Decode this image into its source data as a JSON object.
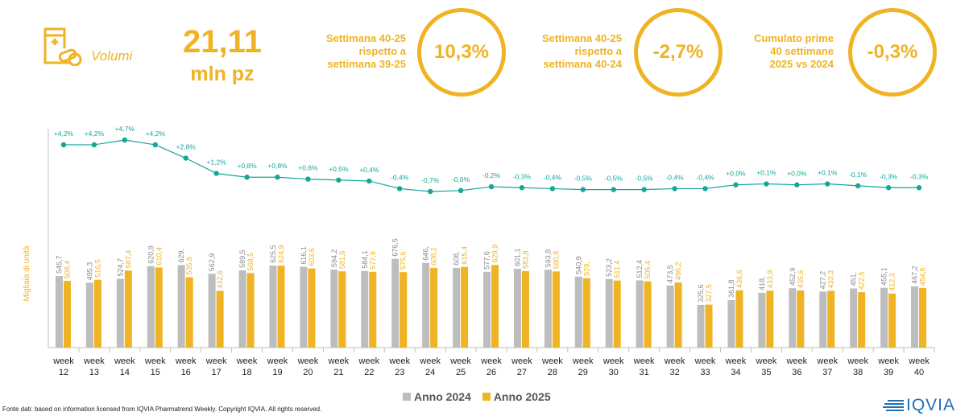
{
  "header": {
    "kpi_label": "Volumi",
    "big_value": "21,11",
    "big_unit": "mln pz",
    "stats": [
      {
        "text_lines": [
          "Settimana 40-25",
          "rispetto a",
          "settimana 39-25"
        ],
        "value": "10,3%"
      },
      {
        "text_lines": [
          "Settimana 40-25",
          "rispetto a",
          "settimana 40-24"
        ],
        "value": "-2,7%"
      },
      {
        "text_lines": [
          "Cumulato prime",
          "40 settimane",
          "2025 vs 2024"
        ],
        "value": "-0,3%"
      }
    ]
  },
  "colors": {
    "accent": "#F0B323",
    "series_2024": "#BDBDBD",
    "series_2025": "#F0B323",
    "line": "#15A69A"
  },
  "footer": {
    "source": "Fonte dati: based on information licensed from IQVIA Pharmatrend Weekly. Copyright IQVIA. All rights reserved.",
    "logo_text": "IQVIA",
    "legend": [
      "Anno 2024",
      "Anno 2025"
    ]
  },
  "chart_data": {
    "type": "bar",
    "ylabel": "Migliaia di unità",
    "categories": [
      "week 12",
      "week 13",
      "week 14",
      "week 15",
      "week 16",
      "week 17",
      "week 18",
      "week 19",
      "week 20",
      "week 21",
      "week 22",
      "week 23",
      "week 24",
      "week 25",
      "week 26",
      "week 27",
      "week 28",
      "week 29",
      "week 30",
      "week 31",
      "week 32",
      "week 33",
      "week 34",
      "week 35",
      "week 36",
      "week 37",
      "week 38",
      "week 39",
      "week 40"
    ],
    "series": [
      {
        "name": "Anno 2024",
        "values": [
          545.7,
          495.3,
          524.7,
          620.9,
          629,
          562.9,
          589.5,
          625.5,
          616.1,
          594.2,
          584.1,
          676.5,
          646,
          608,
          577.6,
          601.1,
          593.8,
          540.9,
          523.2,
          512.4,
          473.5,
          325.6,
          361.8,
          418,
          452.9,
          427.2,
          451,
          455.1,
          467.2
        ],
        "labels": [
          "545,7",
          "495,3",
          "524,7",
          "620,9",
          "629,",
          "562,9",
          "589,5",
          "625,5",
          "616,1",
          "594,2",
          "584,1",
          "676,5",
          "646,",
          "608,",
          "577,6",
          "601,1",
          "593,8",
          "540,9",
          "523,2",
          "512,4",
          "473,5",
          "325,6",
          "361,8",
          "418,",
          "452,9",
          "427,2",
          "451,",
          "455,1",
          "467,2"
        ]
      },
      {
        "name": "Anno 2025",
        "values": [
          508.4,
          516.5,
          587.4,
          610.4,
          535.8,
          432.6,
          568.5,
          624.9,
          603.6,
          581.6,
          577.9,
          575.6,
          608.2,
          615.4,
          629.9,
          583.8,
          580.8,
          529,
          511.4,
          505.4,
          496.2,
          327.5,
          436.6,
          433.9,
          435.6,
          433.3,
          422.5,
          412.3,
          454.6
        ],
        "labels": [
          "508,4",
          "516,5",
          "587,4",
          "610,4",
          "535,8",
          "432,6",
          "568,5",
          "624,9",
          "603,6",
          "581,6",
          "577,9",
          "575,6",
          "608,2",
          "615,4",
          "629,9",
          "583,8",
          "580,8",
          "529,",
          "511,4",
          "505,4",
          "496,2",
          "327,5",
          "436,6",
          "433,9",
          "435,6",
          "433,3",
          "422,5",
          "412,3",
          "454,6"
        ]
      }
    ],
    "trend": {
      "values": [
        4.2,
        4.2,
        4.7,
        4.2,
        2.8,
        1.2,
        0.8,
        0.8,
        0.6,
        0.5,
        0.4,
        -0.4,
        -0.7,
        -0.6,
        -0.2,
        -0.3,
        -0.4,
        -0.5,
        -0.5,
        -0.5,
        -0.4,
        -0.4,
        0.0,
        0.1,
        0.0,
        0.1,
        -0.1,
        -0.3,
        -0.3
      ],
      "labels": [
        "+4,2%",
        "+4,2%",
        "+4,7%",
        "+4,2%",
        "+2,8%",
        "+1,2%",
        "+0,8%",
        "+0,8%",
        "+0,6%",
        "+0,5%",
        "+0,4%",
        "-0,4%",
        "-0,7%",
        "-0,6%",
        "-0,2%",
        "-0,3%",
        "-0,4%",
        "-0,5%",
        "-0,5%",
        "-0,5%",
        "-0,4%",
        "-0,4%",
        "+0,0%",
        "+0,1%",
        "+0,0%",
        "+0,1%",
        "-0,1%",
        "-0,3%",
        "-0,3%"
      ]
    },
    "legend_position": "bottom",
    "grid": false
  }
}
